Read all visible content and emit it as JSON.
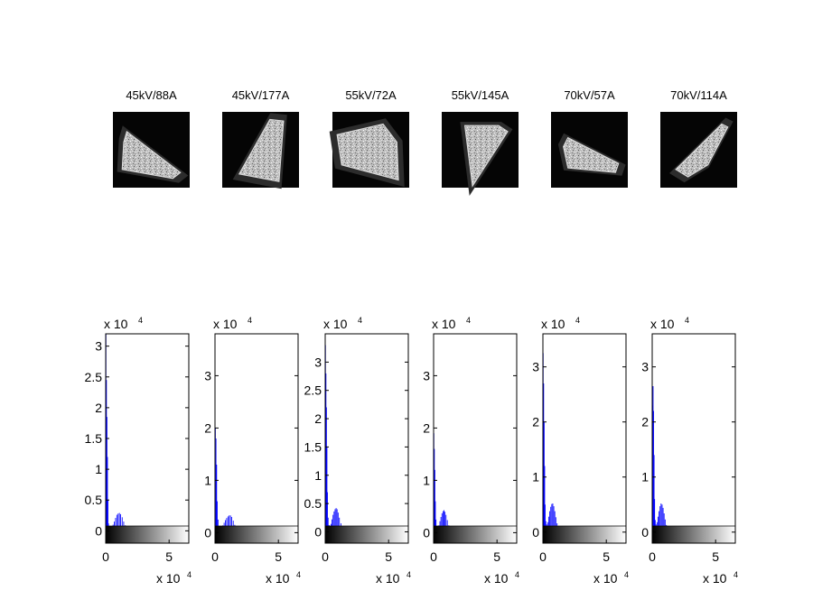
{
  "chart_data": [
    {
      "type": "image",
      "title": "45kV/88A",
      "shape": [
        [
          0.18,
          0.26
        ],
        [
          0.88,
          0.8
        ],
        [
          0.78,
          0.88
        ],
        [
          0.12,
          0.76
        ],
        [
          0.14,
          0.4
        ]
      ]
    },
    {
      "type": "image",
      "title": "45kV/177A",
      "shape": [
        [
          0.62,
          0.1
        ],
        [
          0.8,
          0.12
        ],
        [
          0.74,
          0.92
        ],
        [
          0.22,
          0.82
        ]
      ]
    },
    {
      "type": "image",
      "title": "55kV/72A",
      "shape": [
        [
          0.06,
          0.3
        ],
        [
          0.66,
          0.16
        ],
        [
          0.84,
          0.4
        ],
        [
          0.86,
          0.9
        ],
        [
          0.12,
          0.7
        ]
      ]
    },
    {
      "type": "image",
      "title": "55kV/145A",
      "shape": [
        [
          0.3,
          0.18
        ],
        [
          0.74,
          0.18
        ],
        [
          0.86,
          0.26
        ],
        [
          0.4,
          0.98
        ]
      ]
    },
    {
      "type": "image",
      "title": "70kV/57A",
      "shape": [
        [
          0.22,
          0.34
        ],
        [
          0.88,
          0.68
        ],
        [
          0.84,
          0.8
        ],
        [
          0.22,
          0.74
        ],
        [
          0.16,
          0.46
        ]
      ]
    },
    {
      "type": "image",
      "title": "70kV/114A",
      "shape": [
        [
          0.8,
          0.16
        ],
        [
          0.88,
          0.2
        ],
        [
          0.62,
          0.7
        ],
        [
          0.36,
          0.86
        ],
        [
          0.2,
          0.76
        ]
      ]
    },
    {
      "type": "histogram",
      "color": "#0000ff",
      "x_multiplier": "x 10",
      "x_exponent": "4",
      "y_multiplier": "x 10",
      "y_exponent": "4",
      "xlim": [
        0,
        6.5536
      ],
      "ylim": [
        -0.2,
        3.2
      ],
      "xticks": [
        0,
        5
      ],
      "xtick_labels": [
        "0",
        "5"
      ],
      "yticks": [
        0,
        0.5,
        1,
        1.5,
        2,
        2.5,
        3
      ],
      "ytick_labels": [
        "0",
        "0.5",
        "1",
        "1.5",
        "2",
        "2.5",
        "3"
      ],
      "bins": [
        [
          0.02,
          3.2
        ],
        [
          0.06,
          2.45
        ],
        [
          0.1,
          1.85
        ],
        [
          0.14,
          1.2
        ],
        [
          0.18,
          0.5
        ],
        [
          0.22,
          0.12
        ],
        [
          0.28,
          0.06
        ],
        [
          0.38,
          0.05
        ],
        [
          0.48,
          0.06
        ],
        [
          0.58,
          0.1
        ],
        [
          0.68,
          0.15
        ],
        [
          0.78,
          0.21
        ],
        [
          0.88,
          0.26
        ],
        [
          0.98,
          0.28
        ],
        [
          1.08,
          0.29
        ],
        [
          1.18,
          0.27
        ],
        [
          1.3,
          0.22
        ],
        [
          1.42,
          0.15
        ],
        [
          1.55,
          0.09
        ],
        [
          1.68,
          0.05
        ],
        [
          1.85,
          0.03
        ],
        [
          2.1,
          0.02
        ],
        [
          2.5,
          0.01
        ],
        [
          3.0,
          0.005
        ]
      ]
    },
    {
      "type": "histogram",
      "color": "#0000ff",
      "x_multiplier": "x 10",
      "x_exponent": "4",
      "y_multiplier": "x 10",
      "y_exponent": "4",
      "xlim": [
        0,
        6.5536
      ],
      "ylim": [
        -0.2,
        3.8
      ],
      "xticks": [
        0,
        5
      ],
      "xtick_labels": [
        "0",
        "5"
      ],
      "yticks": [
        0,
        1,
        2,
        3
      ],
      "ytick_labels": [
        "0",
        "1",
        "2",
        "3"
      ],
      "bins": [
        [
          0.03,
          2.0
        ],
        [
          0.08,
          1.8
        ],
        [
          0.13,
          1.3
        ],
        [
          0.18,
          0.6
        ],
        [
          0.24,
          0.25
        ],
        [
          0.32,
          0.12
        ],
        [
          0.42,
          0.08
        ],
        [
          0.52,
          0.1
        ],
        [
          0.62,
          0.14
        ],
        [
          0.72,
          0.19
        ],
        [
          0.82,
          0.24
        ],
        [
          0.92,
          0.28
        ],
        [
          1.02,
          0.31
        ],
        [
          1.12,
          0.33
        ],
        [
          1.22,
          0.33
        ],
        [
          1.32,
          0.3
        ],
        [
          1.44,
          0.23
        ],
        [
          1.56,
          0.15
        ],
        [
          1.7,
          0.08
        ],
        [
          1.85,
          0.04
        ],
        [
          2.1,
          0.02
        ],
        [
          2.5,
          0.01
        ],
        [
          3.0,
          0.005
        ]
      ]
    },
    {
      "type": "histogram",
      "color": "#0000ff",
      "x_multiplier": "x 10",
      "x_exponent": "4",
      "y_multiplier": "x 10",
      "y_exponent": "4",
      "xlim": [
        0,
        6.5536
      ],
      "ylim": [
        -0.2,
        3.5
      ],
      "xticks": [
        0,
        5
      ],
      "xtick_labels": [
        "0",
        "5"
      ],
      "yticks": [
        0,
        0.5,
        1,
        1.5,
        2,
        2.5,
        3
      ],
      "ytick_labels": [
        "0",
        "0.5",
        "1",
        "1.5",
        "2",
        "2.5",
        "3"
      ],
      "bins": [
        [
          0.02,
          3.3
        ],
        [
          0.06,
          2.8
        ],
        [
          0.1,
          2.2
        ],
        [
          0.14,
          1.5
        ],
        [
          0.18,
          0.7
        ],
        [
          0.23,
          0.25
        ],
        [
          0.3,
          0.12
        ],
        [
          0.38,
          0.1
        ],
        [
          0.46,
          0.14
        ],
        [
          0.54,
          0.22
        ],
        [
          0.62,
          0.3
        ],
        [
          0.7,
          0.36
        ],
        [
          0.78,
          0.4
        ],
        [
          0.86,
          0.42
        ],
        [
          0.94,
          0.4
        ],
        [
          1.02,
          0.34
        ],
        [
          1.12,
          0.25
        ],
        [
          1.24,
          0.15
        ],
        [
          1.38,
          0.08
        ],
        [
          1.55,
          0.04
        ],
        [
          1.8,
          0.02
        ],
        [
          2.2,
          0.01
        ],
        [
          2.8,
          0.005
        ]
      ]
    },
    {
      "type": "histogram",
      "color": "#0000ff",
      "x_multiplier": "x 10",
      "x_exponent": "4",
      "y_multiplier": "x 10",
      "y_exponent": "4",
      "xlim": [
        0,
        6.5536
      ],
      "ylim": [
        -0.2,
        3.8
      ],
      "xticks": [
        0,
        5
      ],
      "xtick_labels": [
        "0",
        "5"
      ],
      "yticks": [
        0,
        1,
        2,
        3
      ],
      "ytick_labels": [
        "0",
        "1",
        "2",
        "3"
      ],
      "bins": [
        [
          0.02,
          1.9
        ],
        [
          0.06,
          1.6
        ],
        [
          0.1,
          1.2
        ],
        [
          0.14,
          0.6
        ],
        [
          0.19,
          0.25
        ],
        [
          0.26,
          0.12
        ],
        [
          0.34,
          0.1
        ],
        [
          0.42,
          0.14
        ],
        [
          0.5,
          0.22
        ],
        [
          0.58,
          0.3
        ],
        [
          0.66,
          0.37
        ],
        [
          0.74,
          0.41
        ],
        [
          0.82,
          0.43
        ],
        [
          0.9,
          0.4
        ],
        [
          0.98,
          0.34
        ],
        [
          1.08,
          0.24
        ],
        [
          1.2,
          0.14
        ],
        [
          1.34,
          0.07
        ],
        [
          1.5,
          0.03
        ],
        [
          1.75,
          0.015
        ],
        [
          2.2,
          0.005
        ]
      ]
    },
    {
      "type": "histogram",
      "color": "#0000ff",
      "x_multiplier": "x 10",
      "x_exponent": "4",
      "y_multiplier": "x 10",
      "y_exponent": "4",
      "xlim": [
        0,
        6.5536
      ],
      "ylim": [
        -0.2,
        3.6
      ],
      "xticks": [
        0,
        5
      ],
      "xtick_labels": [
        "0",
        "5"
      ],
      "yticks": [
        0,
        1,
        2,
        3
      ],
      "ytick_labels": [
        "0",
        "1",
        "2",
        "3"
      ],
      "bins": [
        [
          0.02,
          3.25
        ],
        [
          0.06,
          2.7
        ],
        [
          0.1,
          2.0
        ],
        [
          0.14,
          1.2
        ],
        [
          0.18,
          0.5
        ],
        [
          0.23,
          0.2
        ],
        [
          0.3,
          0.14
        ],
        [
          0.38,
          0.18
        ],
        [
          0.46,
          0.28
        ],
        [
          0.54,
          0.38
        ],
        [
          0.62,
          0.46
        ],
        [
          0.7,
          0.51
        ],
        [
          0.78,
          0.52
        ],
        [
          0.86,
          0.47
        ],
        [
          0.94,
          0.38
        ],
        [
          1.02,
          0.27
        ],
        [
          1.12,
          0.16
        ],
        [
          1.24,
          0.08
        ],
        [
          1.38,
          0.04
        ],
        [
          1.6,
          0.02
        ],
        [
          2.0,
          0.005
        ]
      ]
    },
    {
      "type": "histogram",
      "color": "#0000ff",
      "x_multiplier": "x 10",
      "x_exponent": "4",
      "y_multiplier": "x 10",
      "y_exponent": "4",
      "xlim": [
        0,
        6.5536
      ],
      "ylim": [
        -0.2,
        3.6
      ],
      "xticks": [
        0,
        5
      ],
      "xtick_labels": [
        "0",
        "5"
      ],
      "yticks": [
        0,
        1,
        2,
        3
      ],
      "ytick_labels": [
        "0",
        "1",
        "2",
        "3"
      ],
      "bins": [
        [
          0.03,
          2.3
        ],
        [
          0.07,
          2.65
        ],
        [
          0.11,
          2.2
        ],
        [
          0.15,
          1.4
        ],
        [
          0.19,
          0.6
        ],
        [
          0.24,
          0.22
        ],
        [
          0.3,
          0.14
        ],
        [
          0.38,
          0.18
        ],
        [
          0.46,
          0.28
        ],
        [
          0.54,
          0.38
        ],
        [
          0.62,
          0.47
        ],
        [
          0.7,
          0.52
        ],
        [
          0.78,
          0.5
        ],
        [
          0.86,
          0.44
        ],
        [
          0.94,
          0.34
        ],
        [
          1.02,
          0.23
        ],
        [
          1.12,
          0.13
        ],
        [
          1.24,
          0.06
        ],
        [
          1.38,
          0.03
        ],
        [
          1.6,
          0.01
        ],
        [
          2.0,
          0.005
        ]
      ]
    }
  ]
}
